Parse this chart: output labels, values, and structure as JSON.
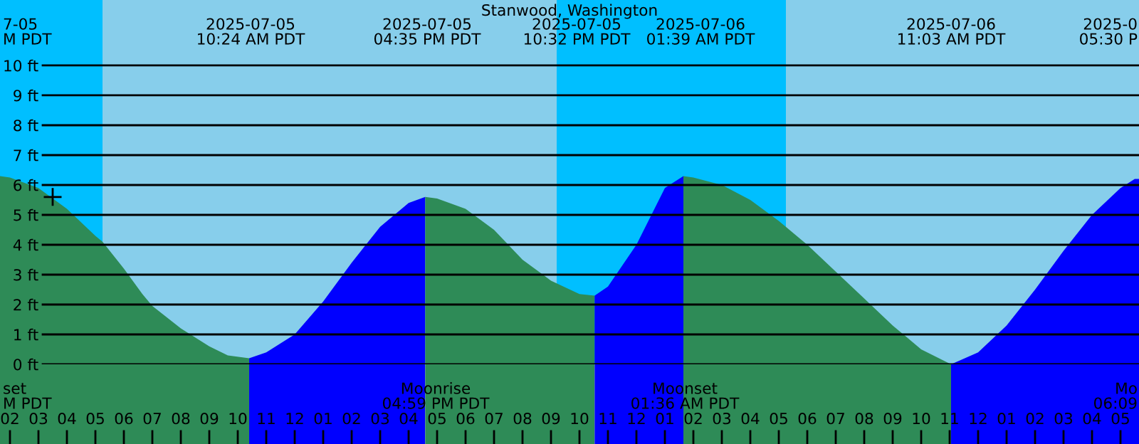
{
  "chart_data": {
    "type": "area",
    "title": "Stanwood, Washington",
    "xlim": [
      "2025-07-05T01:39",
      "2025-07-06T17:39"
    ],
    "ylim": [
      0,
      12.19
    ],
    "xticks": [
      {
        "value": "2025-07-05T02:00",
        "label": "02"
      },
      {
        "value": "2025-07-05T03:00",
        "label": "03"
      },
      {
        "value": "2025-07-05T04:00",
        "label": "04"
      },
      {
        "value": "2025-07-05T05:00",
        "label": "05"
      },
      {
        "value": "2025-07-05T06:00",
        "label": "06"
      },
      {
        "value": "2025-07-05T07:00",
        "label": "07"
      },
      {
        "value": "2025-07-05T08:00",
        "label": "08"
      },
      {
        "value": "2025-07-05T09:00",
        "label": "09"
      },
      {
        "value": "2025-07-05T10:00",
        "label": "10"
      },
      {
        "value": "2025-07-05T11:00",
        "label": "11"
      },
      {
        "value": "2025-07-05T12:00",
        "label": "12"
      },
      {
        "value": "2025-07-05T13:00",
        "label": "01"
      },
      {
        "value": "2025-07-05T14:00",
        "label": "02"
      },
      {
        "value": "2025-07-05T15:00",
        "label": "03"
      },
      {
        "value": "2025-07-05T16:00",
        "label": "04"
      },
      {
        "value": "2025-07-05T17:00",
        "label": "05"
      },
      {
        "value": "2025-07-05T18:00",
        "label": "06"
      },
      {
        "value": "2025-07-05T19:00",
        "label": "07"
      },
      {
        "value": "2025-07-05T20:00",
        "label": "08"
      },
      {
        "value": "2025-07-05T21:00",
        "label": "09"
      },
      {
        "value": "2025-07-05T22:00",
        "label": "10"
      },
      {
        "value": "2025-07-05T23:00",
        "label": "11"
      },
      {
        "value": "2025-07-06T00:00",
        "label": "12"
      },
      {
        "value": "2025-07-06T01:00",
        "label": "01"
      },
      {
        "value": "2025-07-06T02:00",
        "label": "02"
      },
      {
        "value": "2025-07-06T03:00",
        "label": "03"
      },
      {
        "value": "2025-07-06T04:00",
        "label": "04"
      },
      {
        "value": "2025-07-06T05:00",
        "label": "05"
      },
      {
        "value": "2025-07-06T06:00",
        "label": "06"
      },
      {
        "value": "2025-07-06T07:00",
        "label": "07"
      },
      {
        "value": "2025-07-06T08:00",
        "label": "08"
      },
      {
        "value": "2025-07-06T09:00",
        "label": "09"
      },
      {
        "value": "2025-07-06T10:00",
        "label": "10"
      },
      {
        "value": "2025-07-06T11:00",
        "label": "11"
      },
      {
        "value": "2025-07-06T12:00",
        "label": "12"
      },
      {
        "value": "2025-07-06T13:00",
        "label": "01"
      },
      {
        "value": "2025-07-06T14:00",
        "label": "02"
      },
      {
        "value": "2025-07-06T15:00",
        "label": "03"
      },
      {
        "value": "2025-07-06T16:00",
        "label": "04"
      },
      {
        "value": "2025-07-06T17:00",
        "label": "05"
      }
    ],
    "yticks": [
      {
        "value": 0,
        "label": "0 ft"
      },
      {
        "value": 1,
        "label": "1 ft"
      },
      {
        "value": 2,
        "label": "2 ft"
      },
      {
        "value": 3,
        "label": "3 ft"
      },
      {
        "value": 4,
        "label": "4 ft"
      },
      {
        "value": 5,
        "label": "5 ft"
      },
      {
        "value": 6,
        "label": "6 ft"
      },
      {
        "value": 7,
        "label": "7 ft"
      },
      {
        "value": 8,
        "label": "8 ft"
      },
      {
        "value": 9,
        "label": "9 ft"
      },
      {
        "value": 10,
        "label": "10 ft"
      }
    ],
    "grid": "y",
    "series": [
      {
        "color": "#2e8b57",
        "x": [
          "2025-07-05T01:39",
          "2025-07-05T02:00",
          "2025-07-05T03:00",
          "2025-07-05T04:00",
          "2025-07-05T05:00",
          "2025-07-05T05:15",
          "2025-07-05T06:00",
          "2025-07-05T06:39",
          "2025-07-05T07:00",
          "2025-07-05T08:00",
          "2025-07-05T09:00",
          "2025-07-05T09:39",
          "2025-07-05T10:24"
        ],
        "values": [
          6.3,
          6.25,
          5.9,
          5.2,
          4.3,
          4.1,
          3.2,
          2.35,
          1.95,
          1.2,
          0.6,
          0.3,
          0.2
        ]
      },
      {
        "color": "#0000ff",
        "x": [
          "2025-07-05T10:24",
          "2025-07-05T11:00",
          "2025-07-05T12:00",
          "2025-07-05T13:00",
          "2025-07-05T14:00",
          "2025-07-05T15:00",
          "2025-07-05T16:00",
          "2025-07-05T16:35"
        ],
        "values": [
          0.2,
          0.4,
          1.0,
          2.1,
          3.4,
          4.6,
          5.4,
          5.6
        ]
      },
      {
        "color": "#2e8b57",
        "x": [
          "2025-07-05T16:35",
          "2025-07-05T17:00",
          "2025-07-05T18:00",
          "2025-07-05T19:00",
          "2025-07-05T20:00",
          "2025-07-05T21:00",
          "2025-07-05T22:00",
          "2025-07-05T22:32"
        ],
        "values": [
          5.6,
          5.55,
          5.2,
          4.5,
          3.5,
          2.8,
          2.35,
          2.3
        ]
      },
      {
        "color": "#0000ff",
        "x": [
          "2025-07-05T22:32",
          "2025-07-05T23:00",
          "2025-07-06T00:00",
          "2025-07-06T01:00",
          "2025-07-06T01:39"
        ],
        "values": [
          2.3,
          2.6,
          4.0,
          5.9,
          6.3
        ]
      },
      {
        "color": "#2e8b57",
        "x": [
          "2025-07-06T01:39",
          "2025-07-06T02:00",
          "2025-07-06T03:00",
          "2025-07-06T04:00",
          "2025-07-06T05:00",
          "2025-07-06T06:00",
          "2025-07-06T07:00",
          "2025-07-06T08:00",
          "2025-07-06T09:00",
          "2025-07-06T10:00",
          "2025-07-06T11:03"
        ],
        "values": [
          6.3,
          6.25,
          6.0,
          5.5,
          4.8,
          4.0,
          3.1,
          2.2,
          1.3,
          0.5,
          0.0
        ]
      },
      {
        "color": "#0000ff",
        "x": [
          "2025-07-06T11:03",
          "2025-07-06T12:00",
          "2025-07-06T13:00",
          "2025-07-06T14:00",
          "2025-07-06T15:00",
          "2025-07-06T16:00",
          "2025-07-06T17:00",
          "2025-07-06T17:30",
          "2025-07-06T17:39"
        ],
        "values": [
          0.0,
          0.4,
          1.3,
          2.5,
          3.8,
          5.0,
          5.9,
          6.2,
          6.2
        ]
      },
      {
        "type": "scatter",
        "marker": "cross",
        "color": "#000000",
        "x": [
          "2025-07-05T03:30"
        ],
        "values": [
          5.6
        ]
      }
    ],
    "bands": [
      {
        "axis": "x",
        "from": "2025-07-05T01:39",
        "to": "2025-07-05T05:15",
        "color": "#00bfff"
      },
      {
        "axis": "x",
        "from": "2025-07-05T21:12",
        "to": "2025-07-06T05:15",
        "color": "#00bfff"
      }
    ],
    "annotations": [
      "7-05\nM PDT",
      "2025-07-05\n10:24 AM PDT",
      "2025-07-05\n04:35 PM PDT",
      "2025-07-05\n10:32 PM PDT",
      "2025-07-06\n01:39 AM PDT",
      "2025-07-06\n11:03 AM PDT",
      "2025-0\n05:30 P",
      "set\nM PDT",
      "Moonrise\n04:59 PM PDT",
      "Moonset\n01:36 AM PDT",
      "Mo\n06:09"
    ]
  }
}
